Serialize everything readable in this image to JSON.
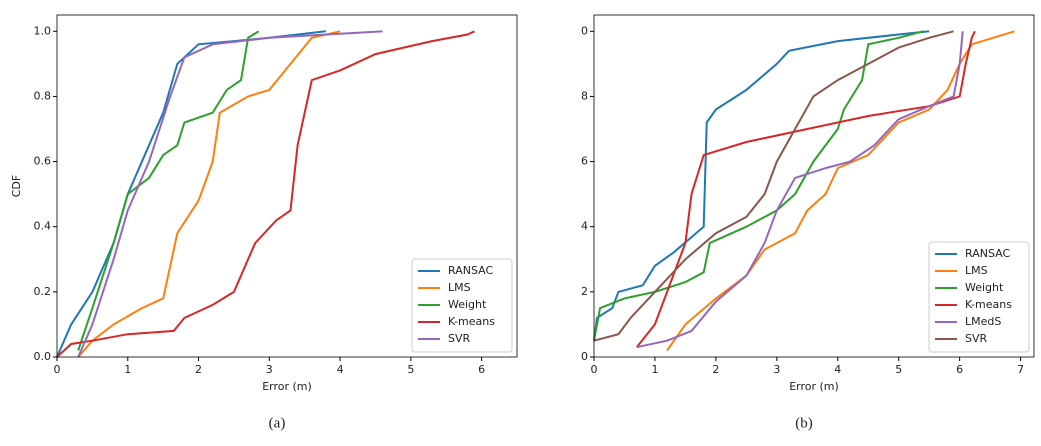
{
  "chart_data": [
    {
      "type": "line",
      "caption": "(a)",
      "xlabel": "Error (m)",
      "ylabel": "CDF",
      "xlim": [
        0,
        6.5
      ],
      "ylim": [
        0,
        1.05
      ],
      "xticks": [
        0,
        1,
        2,
        3,
        4,
        5,
        6
      ],
      "yticks": [
        {
          "value": 0,
          "label": "0.0"
        },
        0.2,
        0.4,
        0.6,
        0.8,
        {
          "value": 1,
          "label": "1.0"
        }
      ],
      "legend": "lower right",
      "series": [
        {
          "name": "RANSAC",
          "color": "#1f77b4",
          "x": [
            0,
            0.2,
            0.5,
            0.8,
            1.0,
            1.3,
            1.5,
            1.7,
            2.0,
            2.5,
            3.0,
            3.8
          ],
          "values": [
            0,
            0.1,
            0.2,
            0.35,
            0.5,
            0.65,
            0.75,
            0.9,
            0.96,
            0.97,
            0.98,
            1.0
          ]
        },
        {
          "name": "LMS",
          "color": "#ff7f0e",
          "x": [
            0.3,
            0.5,
            0.8,
            1.2,
            1.5,
            1.7,
            2.0,
            2.2,
            2.3,
            2.7,
            3.0,
            3.3,
            3.6,
            4.0
          ],
          "values": [
            0,
            0.05,
            0.1,
            0.15,
            0.18,
            0.38,
            0.48,
            0.6,
            0.75,
            0.8,
            0.82,
            0.9,
            0.98,
            1.0
          ]
        },
        {
          "name": "Weight",
          "color": "#2ca02c",
          "x": [
            0.3,
            0.5,
            0.8,
            1.0,
            1.3,
            1.5,
            1.7,
            1.8,
            2.2,
            2.4,
            2.6,
            2.7,
            2.85
          ],
          "values": [
            0.02,
            0.15,
            0.35,
            0.5,
            0.55,
            0.62,
            0.65,
            0.72,
            0.75,
            0.82,
            0.85,
            0.98,
            1.0
          ]
        },
        {
          "name": "K-means",
          "color": "#d62728",
          "x": [
            0,
            0.2,
            0.5,
            1.0,
            1.65,
            1.8,
            2.2,
            2.5,
            2.8,
            3.1,
            3.3,
            3.4,
            3.6,
            4.0,
            4.5,
            5.3,
            5.8,
            5.9
          ],
          "values": [
            0,
            0.04,
            0.05,
            0.07,
            0.08,
            0.12,
            0.16,
            0.2,
            0.35,
            0.42,
            0.45,
            0.65,
            0.85,
            0.88,
            0.93,
            0.97,
            0.99,
            1.0
          ]
        },
        {
          "name": "SVR",
          "color": "#9467bd",
          "x": [
            0.3,
            0.5,
            0.8,
            1.0,
            1.3,
            1.6,
            1.8,
            2.2,
            3.0,
            4.6
          ],
          "values": [
            0,
            0.1,
            0.3,
            0.45,
            0.6,
            0.8,
            0.92,
            0.96,
            0.98,
            1.0
          ]
        }
      ]
    },
    {
      "type": "line",
      "caption": "(b)",
      "xlabel": "Error (m)",
      "xlim": [
        0,
        7.22
      ],
      "ylim": [
        0,
        1.05
      ],
      "xticks": [
        0,
        1,
        2,
        3,
        4,
        5,
        6,
        7
      ],
      "yticks": [
        0,
        {
          "value": 0.2,
          "label": "2"
        },
        {
          "value": 0.4,
          "label": "4"
        },
        {
          "value": 0.6,
          "label": "6"
        },
        {
          "value": 0.8,
          "label": "8"
        },
        {
          "value": 1,
          "label": "0"
        }
      ],
      "legend": "lower right",
      "series": [
        {
          "name": "RANSAC",
          "color": "#1f77b4",
          "x": [
            0,
            0.05,
            0.3,
            0.4,
            0.8,
            1.0,
            1.3,
            1.8,
            1.85,
            2.0,
            2.5,
            3.0,
            3.2,
            4.0,
            5.0,
            5.5
          ],
          "values": [
            0.05,
            0.12,
            0.15,
            0.2,
            0.22,
            0.28,
            0.32,
            0.4,
            0.72,
            0.76,
            0.82,
            0.9,
            0.94,
            0.97,
            0.99,
            1.0
          ]
        },
        {
          "name": "LMS",
          "color": "#ff7f0e",
          "x": [
            1.2,
            1.5,
            2.0,
            2.5,
            2.8,
            3.3,
            3.5,
            3.8,
            4.0,
            4.5,
            4.8,
            5.0,
            5.5,
            5.8,
            6.0,
            6.2,
            6.9
          ],
          "values": [
            0.02,
            0.1,
            0.18,
            0.25,
            0.33,
            0.38,
            0.45,
            0.5,
            0.58,
            0.62,
            0.68,
            0.72,
            0.76,
            0.82,
            0.9,
            0.96,
            1.0
          ]
        },
        {
          "name": "Weight",
          "color": "#2ca02c",
          "x": [
            0,
            0.1,
            0.5,
            1.0,
            1.5,
            1.8,
            1.9,
            2.5,
            3.0,
            3.3,
            3.6,
            4.0,
            4.1,
            4.4,
            4.5,
            5.0,
            5.4
          ],
          "values": [
            0.05,
            0.15,
            0.18,
            0.2,
            0.23,
            0.26,
            0.35,
            0.4,
            0.45,
            0.5,
            0.6,
            0.7,
            0.76,
            0.85,
            0.96,
            0.98,
            1.0
          ]
        },
        {
          "name": "K-means",
          "color": "#d62728",
          "x": [
            0.7,
            1.0,
            1.2,
            1.5,
            1.6,
            1.8,
            2.5,
            3.5,
            4.5,
            5.5,
            6.0,
            6.1,
            6.2,
            6.25
          ],
          "values": [
            0.03,
            0.1,
            0.2,
            0.35,
            0.5,
            0.62,
            0.66,
            0.7,
            0.74,
            0.77,
            0.8,
            0.9,
            0.98,
            1.0
          ]
        },
        {
          "name": "LMedS",
          "color": "#9467bd",
          "x": [
            0.7,
            1.2,
            1.6,
            2.0,
            2.5,
            2.8,
            3.0,
            3.3,
            3.8,
            4.2,
            4.6,
            5.0,
            5.5,
            5.9,
            6.0,
            6.05
          ],
          "values": [
            0.03,
            0.05,
            0.08,
            0.17,
            0.25,
            0.35,
            0.45,
            0.55,
            0.58,
            0.6,
            0.65,
            0.73,
            0.77,
            0.8,
            0.9,
            1.0
          ]
        },
        {
          "name": "SVR",
          "color": "#8c564b",
          "x": [
            0,
            0.4,
            0.6,
            1.0,
            1.5,
            2.0,
            2.5,
            2.8,
            3.0,
            3.3,
            3.6,
            4.0,
            4.5,
            5.0,
            5.5,
            5.9
          ],
          "values": [
            0.05,
            0.07,
            0.12,
            0.2,
            0.3,
            0.38,
            0.43,
            0.5,
            0.6,
            0.7,
            0.8,
            0.85,
            0.9,
            0.95,
            0.98,
            1.0
          ]
        }
      ]
    }
  ]
}
